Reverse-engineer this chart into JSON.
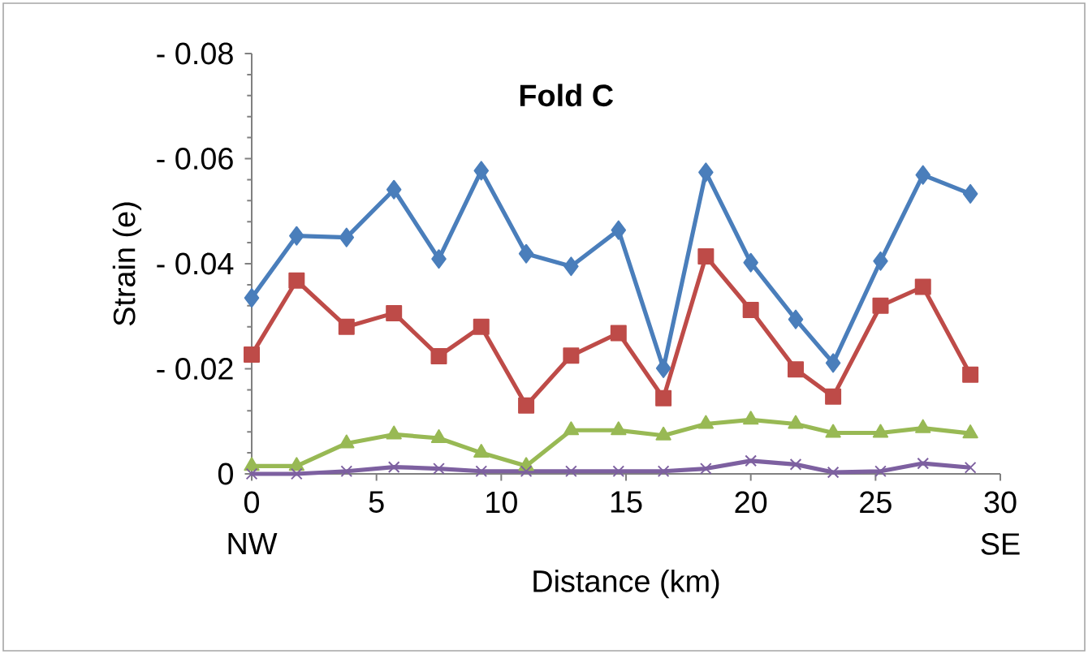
{
  "chart_data": {
    "type": "line",
    "title": "Fold C",
    "xlabel": "Distance (km)",
    "ylabel": "Strain (e)",
    "annotations": [
      "NW",
      "SE"
    ],
    "x": [
      0,
      1.8,
      3.8,
      5.7,
      7.5,
      9.2,
      11.0,
      12.8,
      14.7,
      16.5,
      18.2,
      20.0,
      21.8,
      23.3,
      25.2,
      26.9,
      28.8
    ],
    "series": [
      {
        "color": "#4a7ebb",
        "marker": "diamond",
        "values": [
          -0.0335,
          -0.0453,
          -0.045,
          -0.0541,
          -0.0409,
          -0.0577,
          -0.0419,
          -0.0395,
          -0.0464,
          -0.0201,
          -0.0574,
          -0.0402,
          -0.0294,
          -0.0211,
          -0.0405,
          -0.0569,
          -0.0533
        ]
      },
      {
        "color": "#be4b48",
        "marker": "square",
        "values": [
          -0.0227,
          -0.0368,
          -0.028,
          -0.0306,
          -0.0224,
          -0.028,
          -0.013,
          -0.0225,
          -0.0268,
          -0.0144,
          -0.0414,
          -0.0312,
          -0.0199,
          -0.0147,
          -0.032,
          -0.0356,
          -0.0189
        ]
      },
      {
        "color": "#98b954",
        "marker": "triangle",
        "values": [
          -0.0015,
          -0.0015,
          -0.0058,
          -0.0075,
          -0.0068,
          -0.004,
          -0.0015,
          -0.0083,
          -0.0083,
          -0.0073,
          -0.0095,
          -0.0103,
          -0.0095,
          -0.0078,
          -0.0078,
          -0.0087,
          -0.0077
        ]
      },
      {
        "color": "#7d60a0",
        "marker": "cross",
        "values": [
          0,
          0,
          -0.0005,
          -0.0013,
          -0.001,
          -0.0005,
          -0.0005,
          -0.0005,
          -0.0005,
          -0.0005,
          -0.001,
          -0.0025,
          -0.0018,
          -0.0003,
          -0.0005,
          -0.002,
          -0.0012
        ]
      }
    ],
    "xlim": [
      0,
      30
    ],
    "xticks": [
      0,
      5,
      10,
      15,
      20,
      25,
      30
    ],
    "ylim": [
      0,
      -0.08
    ],
    "yticks": [
      0,
      {
        "value": -0.02,
        "label": "- 0.02"
      },
      {
        "value": -0.04,
        "label": "- 0.04"
      },
      {
        "value": -0.06,
        "label": "- 0.06"
      },
      {
        "value": -0.08,
        "label": "- 0.08"
      }
    ],
    "grid": false,
    "line_style": "solid"
  }
}
